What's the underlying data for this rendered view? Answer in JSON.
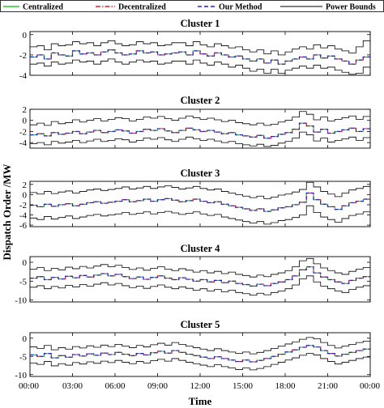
{
  "chart_data": {
    "type": "line",
    "ylabel": "Dispatch Order /MW",
    "xlabel": "Time",
    "x_ticks": [
      "00:00",
      "03:00",
      "06:00",
      "09:00",
      "12:00",
      "15:00",
      "18:00",
      "21:00",
      "00:00"
    ],
    "x_range_hours": [
      0,
      24
    ],
    "legend": {
      "placement": "top",
      "entries": [
        {
          "name": "Centralized",
          "color": "#22cc22",
          "dash": "solid"
        },
        {
          "name": "Decentralized",
          "color": "#dd2222",
          "dash": "dashdot"
        },
        {
          "name": "Our Method",
          "color": "#2222dd",
          "dash": "dashed"
        },
        {
          "name": "Power Bounds",
          "color": "#000000",
          "dash": "solid"
        }
      ]
    },
    "step_hours": 0.5,
    "panels": [
      {
        "title": "Cluster 1",
        "ylim": [
          -4,
          0.3
        ],
        "yticks": [
          "0",
          "-2",
          "-4"
        ],
        "yticks_values": [
          0,
          -2,
          -4
        ],
        "dispatch": [
          -2.2,
          -2.0,
          -2.4,
          -1.8,
          -2.0,
          -2.1,
          -1.6,
          -1.9,
          -1.8,
          -2.0,
          -1.7,
          -1.5,
          -1.8,
          -2.0,
          -1.9,
          -1.6,
          -1.8,
          -1.7,
          -2.0,
          -1.9,
          -1.8,
          -1.7,
          -2.0,
          -1.6,
          -1.9,
          -2.1,
          -1.8,
          -2.0,
          -2.2,
          -2.1,
          -2.4,
          -2.6,
          -2.4,
          -2.8,
          -2.5,
          -2.9,
          -2.6,
          -2.4,
          -2.2,
          -2.4,
          -2.0,
          -2.3,
          -2.1,
          -2.4,
          -2.6,
          -2.9,
          -2.5,
          -2.2
        ],
        "lower": [
          -2.9,
          -2.8,
          -3.1,
          -2.7,
          -2.9,
          -2.8,
          -2.5,
          -2.7,
          -2.6,
          -2.9,
          -2.6,
          -2.4,
          -2.7,
          -2.9,
          -2.7,
          -2.5,
          -2.7,
          -2.6,
          -2.9,
          -2.8,
          -2.6,
          -2.6,
          -2.9,
          -2.5,
          -2.8,
          -3.0,
          -2.7,
          -2.9,
          -3.2,
          -3.0,
          -3.3,
          -3.6,
          -3.4,
          -3.8,
          -3.4,
          -3.8,
          -3.5,
          -3.3,
          -3.1,
          -3.3,
          -3.0,
          -3.3,
          -3.2,
          -3.5,
          -3.7,
          -3.9,
          -3.8,
          -3.2
        ],
        "upper": [
          -1.2,
          -1.1,
          -1.5,
          -0.9,
          -1.1,
          -1.0,
          -0.7,
          -0.9,
          -0.8,
          -1.1,
          -0.8,
          -0.6,
          -0.9,
          -1.1,
          -1.0,
          -0.7,
          -0.9,
          -0.8,
          -1.1,
          -1.0,
          -0.8,
          -0.8,
          -1.1,
          -0.7,
          -1.0,
          -1.2,
          -0.9,
          -1.1,
          -1.3,
          -1.2,
          -1.5,
          -1.7,
          -1.5,
          -1.9,
          -1.6,
          -2.0,
          -1.7,
          -1.4,
          -1.2,
          -1.4,
          -1.0,
          -1.3,
          -1.1,
          -1.4,
          -1.6,
          -1.8,
          -1.2,
          -0.6
        ]
      },
      {
        "title": "Cluster 2",
        "ylim": [
          -5,
          2
        ],
        "yticks": [
          "2",
          "0",
          "-2",
          "-4"
        ],
        "yticks_values": [
          2,
          0,
          -2,
          -4
        ],
        "dispatch": [
          -2.6,
          -2.4,
          -2.8,
          -2.2,
          -2.5,
          -2.3,
          -2.0,
          -2.4,
          -2.1,
          -1.8,
          -2.2,
          -2.0,
          -1.7,
          -1.9,
          -2.3,
          -2.0,
          -1.6,
          -1.8,
          -1.5,
          -1.9,
          -2.2,
          -1.8,
          -1.4,
          -1.7,
          -2.0,
          -1.8,
          -2.1,
          -2.4,
          -2.2,
          -2.6,
          -2.8,
          -3.0,
          -2.7,
          -3.2,
          -2.9,
          -2.5,
          -2.2,
          -1.6,
          -0.5,
          -1.0,
          -2.1,
          -1.6,
          -2.3,
          -2.0,
          -1.7,
          -1.4,
          -2.0,
          -1.5
        ],
        "lower": [
          -4.2,
          -4.0,
          -4.4,
          -3.8,
          -4.1,
          -3.9,
          -3.6,
          -4.0,
          -3.7,
          -3.4,
          -3.8,
          -3.6,
          -3.3,
          -3.5,
          -3.9,
          -3.6,
          -3.2,
          -3.4,
          -3.1,
          -3.5,
          -3.8,
          -3.4,
          -3.0,
          -3.3,
          -3.6,
          -3.4,
          -3.7,
          -4.0,
          -3.8,
          -4.2,
          -4.4,
          -4.6,
          -4.3,
          -4.7,
          -4.5,
          -4.1,
          -3.8,
          -3.2,
          -2.1,
          -2.6,
          -3.7,
          -3.2,
          -3.9,
          -3.6,
          -3.3,
          -3.0,
          -3.6,
          -3.1
        ],
        "upper": [
          -0.8,
          -0.5,
          -0.9,
          -0.2,
          -0.6,
          -0.4,
          0.1,
          -0.3,
          0.0,
          0.3,
          -0.1,
          0.2,
          0.5,
          0.3,
          -0.1,
          0.2,
          0.6,
          0.4,
          0.7,
          0.3,
          0.0,
          0.4,
          0.8,
          0.5,
          0.2,
          0.4,
          0.1,
          -0.2,
          0.0,
          -0.4,
          -0.6,
          -0.8,
          -0.5,
          -0.9,
          -0.7,
          -0.3,
          0.0,
          0.6,
          1.6,
          1.1,
          0.1,
          0.6,
          -0.1,
          0.2,
          0.5,
          0.8,
          0.2,
          0.7
        ]
      },
      {
        "title": "Cluster 3",
        "ylim": [
          -6.3,
          2.6
        ],
        "yticks": [
          "2",
          "0",
          "-2",
          "-4",
          "-6"
        ],
        "yticks_values": [
          2,
          0,
          -2,
          -4,
          -6
        ],
        "dispatch": [
          -2.1,
          -2.4,
          -1.9,
          -2.3,
          -2.0,
          -1.8,
          -2.2,
          -1.9,
          -1.6,
          -1.4,
          -1.7,
          -1.5,
          -1.3,
          -1.0,
          -1.4,
          -1.2,
          -0.9,
          -1.3,
          -1.0,
          -0.8,
          -1.1,
          -1.4,
          -1.2,
          -0.9,
          -1.3,
          -1.6,
          -1.4,
          -1.9,
          -2.2,
          -2.5,
          -2.8,
          -3.1,
          -2.8,
          -3.3,
          -3.0,
          -2.6,
          -2.4,
          -2.0,
          -1.5,
          0.3,
          -1.0,
          -1.9,
          -2.4,
          -2.9,
          -2.2,
          -1.6,
          -1.3,
          -0.9
        ],
        "lower": [
          -4.6,
          -4.9,
          -4.3,
          -4.8,
          -4.5,
          -4.2,
          -4.7,
          -4.4,
          -4.1,
          -3.9,
          -4.2,
          -4.0,
          -3.8,
          -3.5,
          -3.9,
          -3.7,
          -3.4,
          -3.8,
          -3.5,
          -3.3,
          -3.6,
          -3.9,
          -3.7,
          -3.4,
          -3.8,
          -4.1,
          -3.9,
          -4.4,
          -4.7,
          -5.0,
          -5.3,
          -5.6,
          -5.3,
          -5.8,
          -5.5,
          -5.1,
          -4.9,
          -4.5,
          -4.0,
          -2.2,
          -3.5,
          -4.4,
          -4.9,
          -5.4,
          -4.7,
          -4.1,
          -3.8,
          -3.4
        ],
        "upper": [
          0.4,
          0.1,
          0.6,
          0.2,
          0.5,
          0.7,
          0.3,
          0.6,
          0.9,
          1.1,
          0.8,
          1.0,
          1.2,
          1.5,
          1.1,
          1.3,
          1.6,
          1.2,
          1.5,
          1.7,
          1.4,
          1.1,
          1.3,
          1.6,
          1.2,
          0.9,
          1.1,
          0.6,
          0.3,
          0.0,
          -0.3,
          -0.6,
          -0.3,
          -0.8,
          -0.5,
          -0.1,
          0.1,
          0.5,
          1.0,
          2.4,
          1.5,
          0.6,
          0.1,
          -0.4,
          0.3,
          0.9,
          1.2,
          1.6
        ]
      },
      {
        "title": "Cluster 4",
        "ylim": [
          -10.5,
          1.5
        ],
        "yticks": [
          "0",
          "-5",
          "-10"
        ],
        "yticks_values": [
          0,
          -5,
          -10
        ],
        "dispatch": [
          -4.2,
          -3.8,
          -4.6,
          -4.0,
          -4.4,
          -3.7,
          -4.1,
          -3.5,
          -3.9,
          -3.4,
          -3.0,
          -3.6,
          -3.2,
          -3.8,
          -4.3,
          -3.9,
          -4.5,
          -4.0,
          -3.6,
          -4.2,
          -4.6,
          -4.1,
          -4.5,
          -5.0,
          -4.6,
          -5.2,
          -4.8,
          -5.4,
          -5.0,
          -5.6,
          -5.9,
          -6.3,
          -5.8,
          -6.2,
          -5.6,
          -5.2,
          -4.6,
          -3.6,
          -2.0,
          -1.2,
          -2.8,
          -3.9,
          -4.6,
          -5.2,
          -5.6,
          -4.8,
          -4.2,
          -3.8
        ],
        "lower": [
          -6.6,
          -6.2,
          -7.0,
          -6.4,
          -6.8,
          -6.1,
          -6.5,
          -5.9,
          -6.3,
          -5.8,
          -5.4,
          -6.0,
          -5.6,
          -6.2,
          -6.7,
          -6.3,
          -6.9,
          -6.4,
          -6.0,
          -6.6,
          -7.0,
          -6.5,
          -6.9,
          -7.4,
          -7.0,
          -7.6,
          -7.2,
          -7.8,
          -7.4,
          -8.0,
          -8.3,
          -8.7,
          -8.2,
          -8.6,
          -8.0,
          -7.6,
          -7.0,
          -6.0,
          -4.4,
          -3.6,
          -5.2,
          -6.3,
          -7.0,
          -7.6,
          -8.0,
          -7.2,
          -6.6,
          -6.2
        ],
        "upper": [
          -1.8,
          -1.4,
          -2.2,
          -1.6,
          -2.0,
          -1.3,
          -1.7,
          -1.1,
          -1.5,
          -1.0,
          -0.6,
          -1.2,
          -0.8,
          -1.4,
          -1.9,
          -1.5,
          -2.1,
          -1.6,
          -1.2,
          -1.8,
          -2.2,
          -1.7,
          -2.1,
          -2.6,
          -2.2,
          -2.8,
          -2.4,
          -3.0,
          -2.6,
          -3.2,
          -3.5,
          -3.9,
          -3.4,
          -3.8,
          -3.2,
          -2.8,
          -2.2,
          -1.2,
          0.4,
          1.0,
          -0.4,
          -1.5,
          -2.2,
          -2.8,
          -3.2,
          -2.4,
          -1.8,
          -1.4
        ]
      },
      {
        "title": "Cluster 5",
        "ylim": [
          -10.5,
          1.5
        ],
        "yticks": [
          "0",
          "-5",
          "-10"
        ],
        "yticks_values": [
          0,
          -5,
          -10
        ],
        "dispatch": [
          -4.6,
          -5.0,
          -4.2,
          -5.4,
          -4.8,
          -5.2,
          -4.5,
          -4.9,
          -4.3,
          -4.7,
          -4.1,
          -4.5,
          -3.9,
          -4.4,
          -4.8,
          -4.2,
          -4.6,
          -4.0,
          -3.6,
          -4.1,
          -3.4,
          -3.9,
          -4.4,
          -4.8,
          -5.2,
          -5.6,
          -5.1,
          -5.6,
          -6.0,
          -6.4,
          -6.0,
          -6.5,
          -6.1,
          -5.6,
          -5.0,
          -4.4,
          -3.8,
          -3.2,
          -2.5,
          -2.0,
          -2.4,
          -3.4,
          -4.2,
          -4.9,
          -4.4,
          -3.9,
          -3.4,
          -3.0
        ],
        "lower": [
          -6.8,
          -7.2,
          -6.4,
          -7.6,
          -7.0,
          -7.4,
          -6.7,
          -7.1,
          -6.5,
          -6.9,
          -6.3,
          -6.7,
          -6.1,
          -6.6,
          -7.0,
          -6.4,
          -6.8,
          -6.2,
          -5.8,
          -6.3,
          -5.6,
          -6.1,
          -6.6,
          -7.0,
          -7.4,
          -7.8,
          -7.3,
          -7.8,
          -8.2,
          -8.6,
          -8.2,
          -8.7,
          -8.3,
          -7.8,
          -7.2,
          -6.6,
          -6.0,
          -5.4,
          -4.7,
          -4.2,
          -4.6,
          -5.6,
          -6.4,
          -7.1,
          -6.6,
          -6.1,
          -5.6,
          -5.2
        ],
        "upper": [
          -2.4,
          -2.8,
          -2.0,
          -3.2,
          -2.6,
          -3.0,
          -2.3,
          -2.7,
          -2.1,
          -2.5,
          -1.9,
          -2.3,
          -1.7,
          -2.2,
          -2.6,
          -2.0,
          -2.4,
          -1.8,
          -1.4,
          -1.9,
          -1.2,
          -1.7,
          -2.2,
          -2.6,
          -3.0,
          -3.4,
          -2.9,
          -3.4,
          -3.8,
          -4.2,
          -3.8,
          -4.3,
          -3.9,
          -3.4,
          -2.8,
          -2.2,
          -1.6,
          -1.0,
          -0.3,
          0.2,
          -0.2,
          -1.2,
          -2.0,
          -2.7,
          -2.2,
          -1.7,
          -1.2,
          -0.8
        ]
      }
    ]
  }
}
